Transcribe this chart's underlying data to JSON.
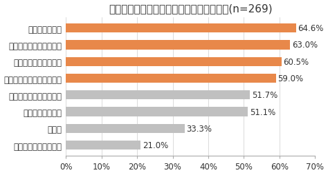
{
  "title": "働き方改革がうまくいっている企業の成果(n=269)",
  "categories": [
    "業績が向上した",
    "従業員満足度が向上した",
    "顧客満足度が向上した",
    "株価等企業価値が向上した",
    "採用がスムーズになった",
    "離職率が低下した",
    "その他",
    "わからない／特にない"
  ],
  "values": [
    64.6,
    63.0,
    60.5,
    59.0,
    51.7,
    51.1,
    33.3,
    21.0
  ],
  "bar_colors": [
    "#E8884A",
    "#E8884A",
    "#E8884A",
    "#E8884A",
    "#C0C0C0",
    "#C0C0C0",
    "#C0C0C0",
    "#C0C0C0"
  ],
  "xlim": [
    0,
    70
  ],
  "xticks": [
    0,
    10,
    20,
    30,
    40,
    50,
    60,
    70
  ],
  "xtick_labels": [
    "0%",
    "10%",
    "20%",
    "30%",
    "40%",
    "50%",
    "60%",
    "70%"
  ],
  "background_color": "#ffffff",
  "title_fontsize": 11,
  "tick_fontsize": 8.5,
  "label_fontsize": 8.5
}
